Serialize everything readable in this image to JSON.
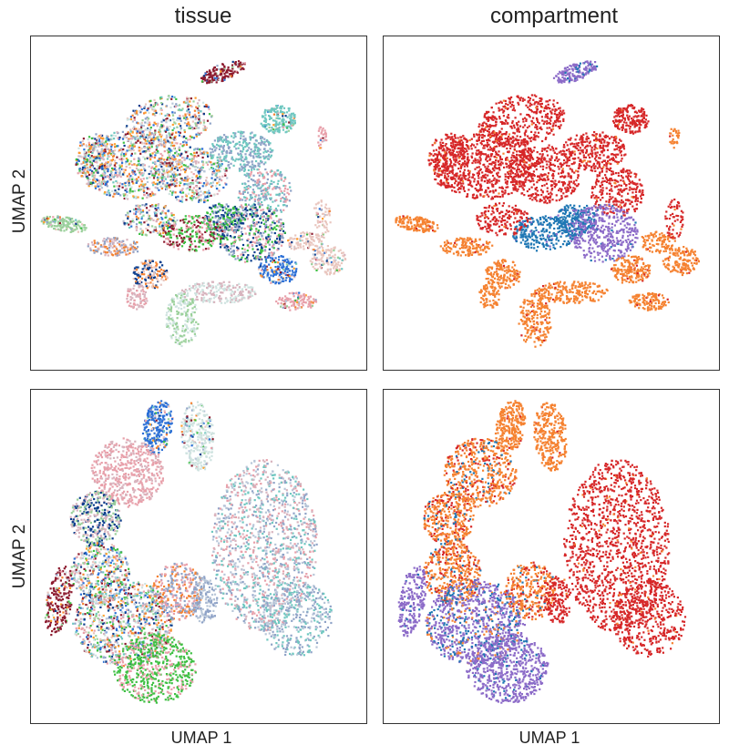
{
  "figure": {
    "column_titles": [
      "tissue",
      "compartment"
    ],
    "ylabel": "UMAP 2",
    "xlabel": "UMAP 1"
  },
  "colors": {
    "epithelial": "#d62728",
    "stromal": "#f58231",
    "immune_lymphoid": "#8c6bc8",
    "immune_myeloid": "#1f77b4",
    "tissue_palette": [
      "#e8a0aa",
      "#8fa3c7",
      "#6fc7c0",
      "#3ec043",
      "#2b6fd6",
      "#0b3d8c",
      "#8c1a2e",
      "#f58231",
      "#d8b4be",
      "#9ad09a",
      "#cfe3e0",
      "#e9c6bf",
      "#b8c6d8",
      "#ff9e2c"
    ]
  },
  "chart_data": [
    {
      "type": "scatter",
      "panel": "top-left",
      "title": "tissue",
      "xlabel": "",
      "ylabel": "UMAP 2",
      "grid": false,
      "encoding": "color by tissue"
    },
    {
      "type": "scatter",
      "panel": "top-right",
      "title": "compartment",
      "xlabel": "",
      "ylabel": "",
      "grid": false,
      "encoding": "color by compartment"
    },
    {
      "type": "scatter",
      "panel": "bottom-left",
      "title": "",
      "xlabel": "UMAP 1",
      "ylabel": "UMAP 2",
      "grid": false,
      "encoding": "color by tissue"
    },
    {
      "type": "scatter",
      "panel": "bottom-right",
      "title": "",
      "xlabel": "UMAP 1",
      "ylabel": "",
      "grid": false,
      "encoding": "color by compartment"
    }
  ]
}
